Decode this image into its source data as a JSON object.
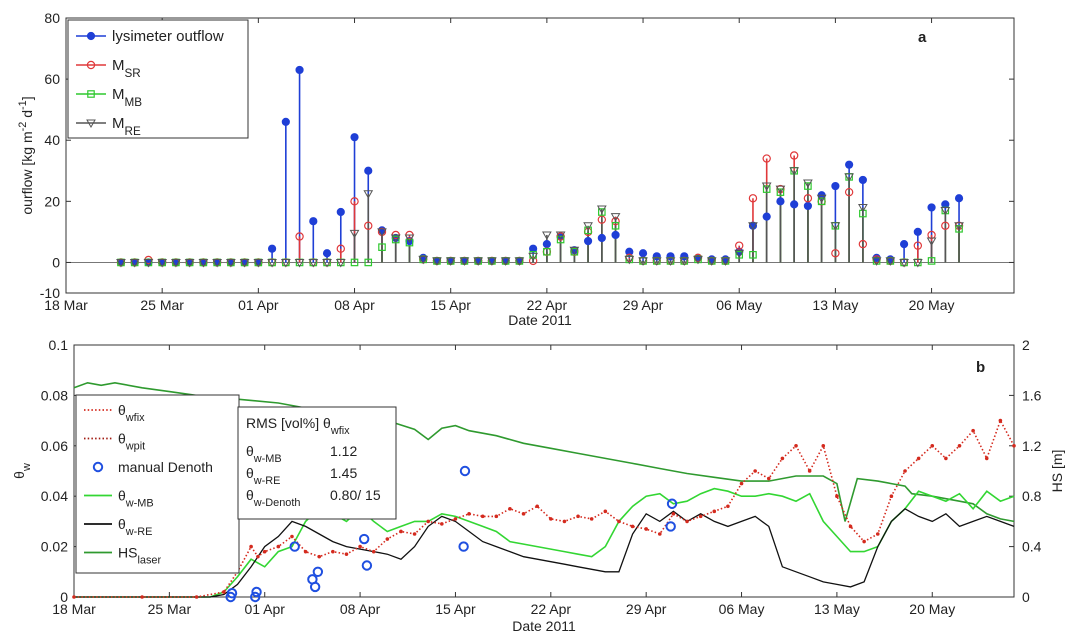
{
  "chart_data": [
    {
      "type": "line",
      "panel_label": "a",
      "xlabel": "Date 2011",
      "ylabel_parts": [
        {
          "t": "ourflow [kg m"
        },
        {
          "t": "-2",
          "sup": true
        },
        {
          "t": " d"
        },
        {
          "t": "-1",
          "sup": true
        },
        {
          "t": "]"
        }
      ],
      "x_ticks": [
        "18 Mar",
        "25 Mar",
        "01 Apr",
        "08 Apr",
        "15 Apr",
        "22 Apr",
        "29 Apr",
        "06 May",
        "13 May",
        "20 May"
      ],
      "y_ticks": [
        "-10",
        "0",
        "20",
        "40",
        "60",
        "80"
      ],
      "ylim": [
        -10,
        80
      ],
      "xlim_days": [
        0,
        69
      ],
      "grid": false,
      "legend_position": "top-left",
      "legend": [
        {
          "key": "lys",
          "label": "lysimeter outflow",
          "sub": ""
        },
        {
          "key": "sr",
          "label": "M",
          "sub": "SR"
        },
        {
          "key": "mb",
          "label": "M",
          "sub": "MB"
        },
        {
          "key": "re",
          "label": "M",
          "sub": "RE"
        }
      ],
      "colors": {
        "lys": "#1f3fd6",
        "sr": "#e0383a",
        "mb": "#2ec82e",
        "re": "#555555"
      },
      "x_days": [
        4,
        5,
        6,
        7,
        8,
        9,
        10,
        11,
        12,
        13,
        14,
        15,
        16,
        17,
        18,
        19,
        20,
        21,
        22,
        23,
        24,
        25,
        26,
        27,
        28,
        29,
        30,
        31,
        32,
        33,
        34,
        35,
        36,
        37,
        38,
        39,
        40,
        41,
        42,
        43,
        44,
        45,
        46,
        47,
        48,
        49,
        50,
        51,
        52,
        53,
        54,
        55,
        56,
        57,
        58,
        59,
        60,
        61,
        62,
        63,
        64,
        65,
        66,
        67,
        68
      ],
      "dates": [
        "22 Mar",
        "23 Mar",
        "24 Mar",
        "25 Mar",
        "26 Mar",
        "27 Mar",
        "28 Mar",
        "29 Mar",
        "30 Mar",
        "31 Mar",
        "01 Apr",
        "02 Apr",
        "03 Apr",
        "04 Apr",
        "05 Apr",
        "06 Apr",
        "07 Apr",
        "08 Apr",
        "09 Apr",
        "10 Apr",
        "11 Apr",
        "12 Apr",
        "13 Apr",
        "14 Apr",
        "15 Apr",
        "16 Apr",
        "17 Apr",
        "18 Apr",
        "19 Apr",
        "20 Apr",
        "21 Apr",
        "22 Apr",
        "23 Apr",
        "24 Apr",
        "25 Apr",
        "26 Apr",
        "27 Apr",
        "28 Apr",
        "29 Apr",
        "30 Apr",
        "01 May",
        "02 May",
        "03 May",
        "04 May",
        "05 May",
        "06 May",
        "07 May",
        "08 May",
        "09 May",
        "10 May",
        "11 May",
        "12 May",
        "13 May",
        "14 May",
        "15 May",
        "16 May",
        "17 May",
        "18 May",
        "19 May",
        "20 May",
        "21 May",
        "22 May",
        "23 May",
        "24 May",
        "25 May"
      ],
      "series": [
        {
          "key": "lys",
          "values": [
            0,
            0,
            0,
            0,
            0,
            0,
            0,
            0,
            0,
            0,
            0,
            4.5,
            46,
            63,
            13.5,
            3,
            16.5,
            41,
            30,
            10.5,
            8,
            7,
            1.5,
            0.5,
            0.5,
            0.5,
            0.5,
            0.5,
            0.5,
            0.5,
            4.5,
            6,
            8.5,
            4,
            7,
            8,
            9,
            3.5,
            3,
            2,
            2,
            2,
            1.5,
            1,
            1,
            3.5,
            12,
            15,
            20,
            19,
            18.5,
            22,
            25,
            32,
            27,
            1.5,
            1,
            6,
            10,
            18,
            19,
            21,
            null,
            null,
            null
          ]
        },
        {
          "key": "sr",
          "values": [
            0,
            0,
            0.8,
            0,
            0,
            0,
            0,
            0,
            0,
            0,
            0,
            0,
            0,
            8.5,
            0,
            0,
            4.5,
            20,
            12,
            10,
            9,
            9,
            1,
            0.5,
            0.5,
            0.5,
            0.5,
            0.5,
            0.5,
            0.5,
            0.5,
            3.5,
            8.5,
            3.5,
            10,
            14,
            13.5,
            1.5,
            0.5,
            0.5,
            0.5,
            0.5,
            1.5,
            0.5,
            0.5,
            5.5,
            21,
            34,
            24,
            35,
            21,
            20,
            3,
            23,
            6,
            1,
            0.5,
            0,
            5.5,
            9,
            12,
            12,
            null,
            null,
            null
          ]
        },
        {
          "key": "mb",
          "values": [
            0,
            0,
            0,
            0,
            0,
            0,
            0,
            0,
            0,
            0,
            0,
            0,
            0,
            0,
            0,
            0,
            0,
            0,
            0,
            5,
            7.5,
            6.5,
            1,
            0.5,
            0.5,
            0.5,
            0.5,
            0.5,
            0.5,
            0.5,
            2.5,
            3.5,
            7.5,
            3.5,
            10.5,
            16.5,
            12,
            1,
            0.5,
            0.5,
            0.5,
            0.5,
            1,
            0.5,
            0.5,
            2.5,
            2.5,
            24,
            23,
            30,
            25,
            20,
            12,
            28,
            16,
            0.5,
            0.5,
            0,
            0,
            0.5,
            17,
            11,
            null,
            null,
            null
          ]
        },
        {
          "key": "re",
          "values": [
            0,
            0,
            0,
            0,
            0,
            0,
            0,
            0,
            0,
            0,
            0,
            0,
            0,
            0,
            0,
            0,
            0,
            9.5,
            22.5,
            10,
            8,
            8,
            1,
            0.5,
            0.5,
            0.5,
            0.5,
            0.5,
            0.5,
            0.5,
            2,
            9,
            9,
            4,
            12,
            17.5,
            15,
            1,
            0.5,
            0.5,
            0.5,
            0.5,
            1,
            0.5,
            0.5,
            3,
            12,
            25,
            24,
            30,
            26,
            21,
            12,
            28,
            18,
            0.5,
            0.5,
            0,
            0,
            7,
            17,
            12,
            null,
            null,
            null
          ]
        }
      ]
    },
    {
      "type": "line",
      "panel_label": "b",
      "xlabel": "Date 2011",
      "ylabel_left": {
        "t": "θ",
        "sub": "w"
      },
      "ylabel_right": "HS [m]",
      "x_ticks": [
        "18 Mar",
        "25 Mar",
        "01 Apr",
        "08 Apr",
        "15 Apr",
        "22 Apr",
        "29 Apr",
        "06 May",
        "13 May",
        "20 May"
      ],
      "y_ticks_left": [
        "0",
        "0.02",
        "0.04",
        "0.06",
        "0.08",
        "0.1"
      ],
      "y_ticks_right": [
        "0",
        "0.4",
        "0.8",
        "1.2",
        "1.6",
        "2"
      ],
      "ylim_left": [
        0,
        0.1
      ],
      "ylim_right": [
        0,
        2
      ],
      "xlim_days": [
        0,
        69
      ],
      "legend_position": "left",
      "legend": [
        {
          "key": "wfix",
          "label": "θ",
          "sub": "wfix"
        },
        {
          "key": "wpit",
          "label": "θ",
          "sub": "wpit"
        },
        {
          "key": "manual",
          "label": "manual Denoth",
          "sub": ""
        },
        {
          "key": "wmb",
          "label": "θ",
          "sub": "w-MB"
        },
        {
          "key": "wre",
          "label": "θ",
          "sub": "w-RE"
        },
        {
          "key": "hs",
          "label": "HS",
          "sub": "laser"
        }
      ],
      "rms_box": {
        "title": "RMS [vol%] θ",
        "title_sub": "wfix",
        "rows": [
          {
            "label": "θ",
            "sub": "w-MB",
            "value": "1.12"
          },
          {
            "label": "θ",
            "sub": "w-RE",
            "value": "1.45"
          },
          {
            "label": "θ",
            "sub": "w-Denoth",
            "value": "0.80/ 15"
          }
        ]
      },
      "colors": {
        "wfix": "#d42a1e",
        "wpit": "#a01a10",
        "manual": "#1f4fe0",
        "wmb": "#33d633",
        "wre": "#111111",
        "hs": "#2f9a2f"
      },
      "series": [
        {
          "key": "hs",
          "axis": "right",
          "x": [
            0,
            1,
            2,
            3,
            5,
            7,
            9,
            11,
            13,
            15,
            17,
            19,
            21,
            23,
            25,
            26,
            27,
            28,
            29,
            31,
            33,
            35,
            37,
            39,
            41,
            43,
            45,
            47,
            49,
            51,
            53,
            55,
            56,
            56.6,
            57.5,
            59,
            60,
            61,
            61.5,
            63,
            65,
            66,
            67,
            68,
            69
          ],
          "y": [
            1.66,
            1.7,
            1.68,
            1.7,
            1.66,
            1.63,
            1.6,
            1.58,
            1.56,
            1.54,
            1.5,
            1.48,
            1.44,
            1.4,
            1.33,
            1.25,
            1.34,
            1.36,
            1.32,
            1.28,
            1.22,
            1.18,
            1.14,
            1.1,
            1.06,
            1.02,
            0.98,
            0.95,
            0.92,
            0.92,
            0.96,
            0.96,
            0.9,
            0.6,
            0.94,
            0.92,
            0.9,
            0.88,
            0.82,
            0.8,
            0.76,
            0.74,
            0.66,
            0.62,
            0.6
          ]
        },
        {
          "key": "manual",
          "axis": "left",
          "style": "markers",
          "x": [
            11.5,
            13.4,
            16.2,
            17.5,
            17.9,
            21.3,
            28.7,
            43.9
          ],
          "y": [
            0.0,
            0.002,
            0.02,
            0.007,
            0.01,
            0.023,
            0.05,
            0.037
          ]
        },
        {
          "key": "manual2",
          "axis": "left",
          "style": "markers",
          "x": [
            11.6,
            13.3,
            17.7,
            21.5,
            28.6,
            43.8
          ],
          "y": [
            0.0015,
            0.0,
            0.004,
            0.0125,
            0.02,
            0.028
          ]
        },
        {
          "key": "wfix",
          "axis": "left",
          "x": [
            0,
            5,
            9,
            11,
            12,
            13,
            13.5,
            14,
            15,
            16,
            17,
            18,
            19,
            20,
            21,
            22,
            23,
            24,
            25,
            26,
            27,
            28,
            29,
            30,
            31,
            32,
            33,
            34,
            35,
            36,
            37,
            38,
            39,
            40,
            41,
            42,
            43,
            44,
            45,
            46,
            47,
            48,
            49,
            50,
            51,
            52,
            53,
            54,
            55,
            56,
            57,
            58,
            59,
            60,
            61,
            62,
            63,
            64,
            65,
            66,
            67,
            68,
            69
          ],
          "y": [
            0.0,
            0.0,
            0.0,
            0.002,
            0.01,
            0.02,
            0.016,
            0.018,
            0.02,
            0.024,
            0.018,
            0.016,
            0.018,
            0.017,
            0.02,
            0.018,
            0.023,
            0.026,
            0.025,
            0.03,
            0.029,
            0.031,
            0.033,
            0.032,
            0.032,
            0.035,
            0.033,
            0.036,
            0.031,
            0.03,
            0.032,
            0.031,
            0.034,
            0.03,
            0.028,
            0.027,
            0.025,
            0.033,
            0.03,
            0.032,
            0.034,
            0.036,
            0.045,
            0.05,
            0.047,
            0.055,
            0.06,
            0.05,
            0.06,
            0.04,
            0.028,
            0.022,
            0.025,
            0.04,
            0.05,
            0.055,
            0.06,
            0.055,
            0.06,
            0.066,
            0.055,
            0.07,
            0.06
          ]
        },
        {
          "key": "wmb",
          "axis": "left",
          "x": [
            0,
            5,
            10,
            11,
            12,
            13,
            14,
            15,
            16,
            17,
            18,
            19,
            20,
            21,
            22,
            23,
            24,
            25,
            26,
            27,
            28,
            29,
            30,
            31,
            32,
            33,
            34,
            35,
            36,
            37,
            38,
            39,
            40,
            41,
            42,
            43,
            44,
            45,
            46,
            47,
            48,
            49,
            50,
            51,
            52,
            53,
            54,
            55,
            56,
            57,
            58,
            59,
            60,
            61,
            62,
            63,
            64,
            65,
            66,
            67,
            68,
            69
          ],
          "y": [
            0.0,
            0.0,
            0.0,
            0.002,
            0.008,
            0.015,
            0.012,
            0.018,
            0.02,
            0.03,
            0.035,
            0.033,
            0.03,
            0.035,
            0.03,
            0.026,
            0.028,
            0.03,
            0.03,
            0.033,
            0.032,
            0.03,
            0.028,
            0.026,
            0.022,
            0.021,
            0.02,
            0.019,
            0.018,
            0.017,
            0.016,
            0.02,
            0.03,
            0.036,
            0.04,
            0.041,
            0.037,
            0.038,
            0.041,
            0.043,
            0.042,
            0.04,
            0.04,
            0.041,
            0.04,
            0.038,
            0.041,
            0.03,
            0.024,
            0.018,
            0.018,
            0.02,
            0.03,
            0.035,
            0.042,
            0.04,
            0.038,
            0.041,
            0.035,
            0.042,
            0.038,
            0.04
          ]
        },
        {
          "key": "wre",
          "axis": "left",
          "x": [
            0,
            5,
            10,
            11,
            12,
            13,
            14,
            15,
            16,
            17,
            18,
            19,
            20,
            21,
            22,
            23,
            24,
            25,
            26,
            27,
            28,
            29,
            30,
            31,
            32,
            33,
            34,
            35,
            36,
            37,
            38,
            39,
            40,
            41,
            42,
            43,
            44,
            45,
            46,
            47,
            48,
            49,
            50,
            51,
            52,
            53,
            54,
            55,
            56,
            57,
            58,
            59,
            60,
            61,
            62,
            63,
            64,
            65,
            66,
            67,
            68,
            69
          ],
          "y": [
            0.0,
            0.0,
            0.0,
            0.001,
            0.005,
            0.012,
            0.02,
            0.024,
            0.03,
            0.028,
            0.025,
            0.022,
            0.02,
            0.019,
            0.018,
            0.017,
            0.015,
            0.02,
            0.028,
            0.032,
            0.03,
            0.026,
            0.022,
            0.02,
            0.018,
            0.016,
            0.015,
            0.014,
            0.013,
            0.012,
            0.011,
            0.01,
            0.01,
            0.025,
            0.033,
            0.03,
            0.034,
            0.03,
            0.033,
            0.03,
            0.028,
            0.03,
            0.032,
            0.028,
            0.012,
            0.01,
            0.008,
            0.006,
            0.005,
            0.004,
            0.006,
            0.02,
            0.03,
            0.035,
            0.032,
            0.03,
            0.033,
            0.028,
            0.03,
            0.032,
            0.03,
            0.028
          ]
        }
      ]
    }
  ]
}
